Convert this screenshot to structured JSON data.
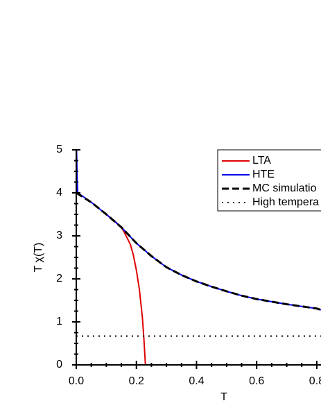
{
  "chart_data": {
    "type": "line",
    "xlabel": "T",
    "ylabel": "T χ(T)",
    "xlim": [
      0,
      0.814
    ],
    "ylim": [
      0,
      5
    ],
    "xticks": [
      {
        "value": 0,
        "label": "0.0"
      },
      0.2,
      0.4,
      0.6,
      0.8
    ],
    "yticks": [
      0,
      1,
      2,
      3,
      4,
      5
    ],
    "series": [
      {
        "name": "LTA",
        "color": "#e00000",
        "dash": "solid",
        "x": [
          0.1,
          0.13,
          0.15,
          0.16,
          0.18,
          0.19,
          0.2,
          0.21,
          0.22,
          0.225,
          0.23
        ],
        "values": [
          3.5,
          3.33,
          3.2,
          3.08,
          2.8,
          2.55,
          2.2,
          1.75,
          1.1,
          0.6,
          0
        ]
      },
      {
        "name": "HTE",
        "color": "#0000ee",
        "dash": "solid",
        "x": [
          0.001,
          0.003,
          0.005,
          0.05,
          0.1,
          0.15,
          0.2,
          0.25,
          0.3,
          0.35,
          0.4,
          0.45,
          0.5,
          0.55,
          0.6,
          0.65,
          0.7,
          0.75,
          0.8,
          0.814
        ],
        "values": [
          5,
          4.3,
          4.0,
          3.78,
          3.5,
          3.2,
          2.83,
          2.53,
          2.27,
          2.09,
          1.94,
          1.82,
          1.71,
          1.61,
          1.53,
          1.47,
          1.41,
          1.36,
          1.31,
          1.28
        ]
      },
      {
        "name": "MC simulatio",
        "color": "#000000",
        "dash": "dashed",
        "x": [
          0,
          0.05,
          0.1,
          0.15,
          0.2,
          0.25,
          0.3,
          0.35,
          0.4,
          0.45,
          0.5,
          0.55,
          0.6,
          0.65,
          0.7,
          0.75,
          0.8,
          0.814
        ],
        "values": [
          4.0,
          3.78,
          3.5,
          3.2,
          2.83,
          2.53,
          2.27,
          2.09,
          1.94,
          1.82,
          1.71,
          1.61,
          1.53,
          1.47,
          1.41,
          1.36,
          1.31,
          1.28
        ]
      },
      {
        "name": "High tempera",
        "color": "#000000",
        "dash": "dotted",
        "x": [
          0,
          0.814
        ],
        "values": [
          0.67,
          0.67
        ]
      }
    ]
  }
}
